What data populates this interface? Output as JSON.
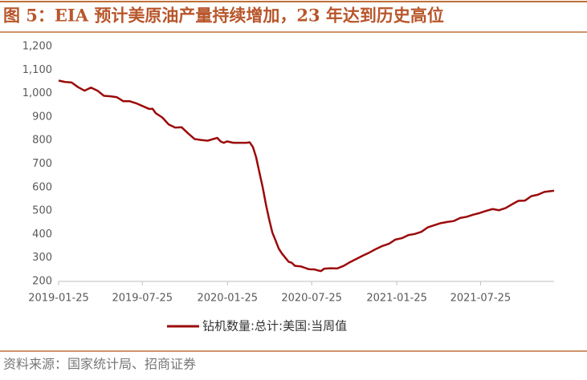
{
  "chart_data": {
    "type": "line",
    "title": "图 5：EIA 预计美原油产量持续增加，23 年达到历史高位",
    "source": "资料来源：国家统计局、招商证券",
    "x": [
      "2019-01-25",
      "2019-02-08",
      "2019-02-22",
      "2019-03-08",
      "2019-03-22",
      "2019-04-05",
      "2019-04-19",
      "2019-05-03",
      "2019-05-17",
      "2019-05-31",
      "2019-06-14",
      "2019-06-28",
      "2019-07-12",
      "2019-07-26",
      "2019-08-09",
      "2019-08-16",
      "2019-08-23",
      "2019-09-06",
      "2019-09-20",
      "2019-10-04",
      "2019-10-18",
      "2019-11-01",
      "2019-11-15",
      "2019-11-29",
      "2019-12-13",
      "2020-01-03",
      "2020-01-10",
      "2020-01-17",
      "2020-01-24",
      "2020-02-07",
      "2020-02-21",
      "2020-03-06",
      "2020-03-13",
      "2020-03-20",
      "2020-03-27",
      "2020-04-03",
      "2020-04-10",
      "2020-04-17",
      "2020-04-24",
      "2020-05-01",
      "2020-05-08",
      "2020-05-15",
      "2020-05-22",
      "2020-05-29",
      "2020-06-05",
      "2020-06-12",
      "2020-06-19",
      "2020-06-26",
      "2020-07-03",
      "2020-07-10",
      "2020-07-17",
      "2020-07-24",
      "2020-07-31",
      "2020-08-07",
      "2020-08-14",
      "2020-08-21",
      "2020-09-04",
      "2020-09-18",
      "2020-10-02",
      "2020-10-16",
      "2020-10-30",
      "2020-11-13",
      "2020-11-27",
      "2020-12-11",
      "2020-12-25",
      "2021-01-08",
      "2021-01-22",
      "2021-02-05",
      "2021-02-19",
      "2021-03-05",
      "2021-03-19",
      "2021-04-02",
      "2021-04-16",
      "2021-04-30",
      "2021-05-14",
      "2021-05-28",
      "2021-06-11",
      "2021-06-25",
      "2021-07-09",
      "2021-07-23",
      "2021-08-06",
      "2021-08-20",
      "2021-09-03",
      "2021-09-17",
      "2021-10-01",
      "2021-10-15",
      "2021-10-29",
      "2021-11-12",
      "2021-11-26",
      "2021-12-10",
      "2021-12-31"
    ],
    "series": [
      {
        "name": "钻机数量:总计:美国:当周值",
        "color": "#9b0a0a",
        "values": [
          1055,
          1049,
          1047,
          1027,
          1012,
          1025,
          1012,
          990,
          988,
          984,
          967,
          967,
          958,
          946,
          934,
          935,
          916,
          898,
          868,
          855,
          856,
          830,
          806,
          802,
          799,
          811,
          796,
          790,
          796,
          790,
          790,
          790,
          792,
          772,
          728,
          664,
          602,
          529,
          465,
          408,
          374,
          339,
          318,
          301,
          284,
          279,
          266,
          265,
          263,
          258,
          253,
          251,
          251,
          247,
          244,
          254,
          256,
          255,
          266,
          282,
          296,
          310,
          323,
          338,
          351,
          360,
          378,
          384,
          397,
          402,
          411,
          430,
          439,
          448,
          453,
          457,
          470,
          475,
          484,
          491,
          500,
          508,
          503,
          512,
          528,
          543,
          544,
          563,
          569,
          581,
          586
        ]
      }
    ],
    "xlim": [
      "2019-01-25",
      "2021-12-31"
    ],
    "xticks": [
      "2019-01-25",
      "2019-07-25",
      "2020-01-25",
      "2020-07-25",
      "2021-01-25",
      "2021-07-25"
    ],
    "ylim": [
      200,
      1200
    ],
    "yticks": [
      200,
      300,
      400,
      500,
      600,
      700,
      800,
      900,
      {
        "value": 1000,
        "label": "1,000"
      },
      {
        "value": 1100,
        "label": "1,100"
      },
      {
        "value": 1200,
        "label": "1,200"
      }
    ]
  }
}
